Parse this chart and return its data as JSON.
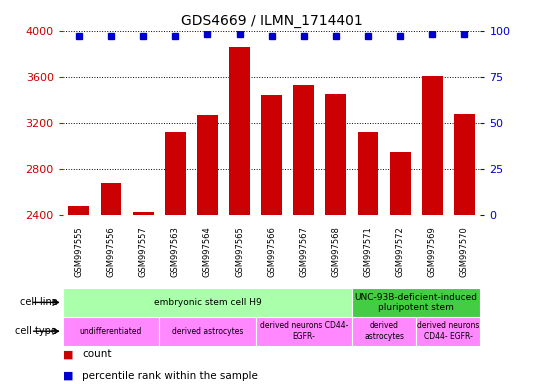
{
  "title": "GDS4669 / ILMN_1714401",
  "samples": [
    "GSM997555",
    "GSM997556",
    "GSM997557",
    "GSM997563",
    "GSM997564",
    "GSM997565",
    "GSM997566",
    "GSM997567",
    "GSM997568",
    "GSM997571",
    "GSM997572",
    "GSM997569",
    "GSM997570"
  ],
  "counts": [
    2480,
    2680,
    2430,
    3120,
    3270,
    3860,
    3440,
    3530,
    3450,
    3120,
    2950,
    3610,
    3280
  ],
  "percentiles": [
    97,
    97,
    97,
    97,
    98,
    98,
    97,
    97,
    97,
    97,
    97,
    98,
    98
  ],
  "bar_color": "#cc0000",
  "dot_color": "#0000cc",
  "ylim_left": [
    2400,
    4000
  ],
  "ylim_right": [
    0,
    100
  ],
  "yticks_left": [
    2400,
    2800,
    3200,
    3600,
    4000
  ],
  "yticks_right": [
    0,
    25,
    50,
    75,
    100
  ],
  "cell_line_groups": [
    {
      "label": "embryonic stem cell H9",
      "start": 0,
      "end": 9,
      "color": "#aaffaa"
    },
    {
      "label": "UNC-93B-deficient-induced\npluripotent stem",
      "start": 9,
      "end": 13,
      "color": "#44cc44"
    }
  ],
  "cell_type_groups": [
    {
      "label": "undifferentiated",
      "start": 0,
      "end": 3,
      "color": "#ff88ff"
    },
    {
      "label": "derived astrocytes",
      "start": 3,
      "end": 6,
      "color": "#ff88ff"
    },
    {
      "label": "derived neurons CD44-\nEGFR-",
      "start": 6,
      "end": 9,
      "color": "#ff88ff"
    },
    {
      "label": "derived\nastrocytes",
      "start": 9,
      "end": 11,
      "color": "#ff88ff"
    },
    {
      "label": "derived neurons\nCD44- EGFR-",
      "start": 11,
      "end": 13,
      "color": "#ff88ff"
    }
  ],
  "ylabel_left_color": "#cc0000",
  "ylabel_right_color": "#0000cc",
  "tick_bg_color": "#cccccc",
  "plot_bg_color": "#ffffff"
}
